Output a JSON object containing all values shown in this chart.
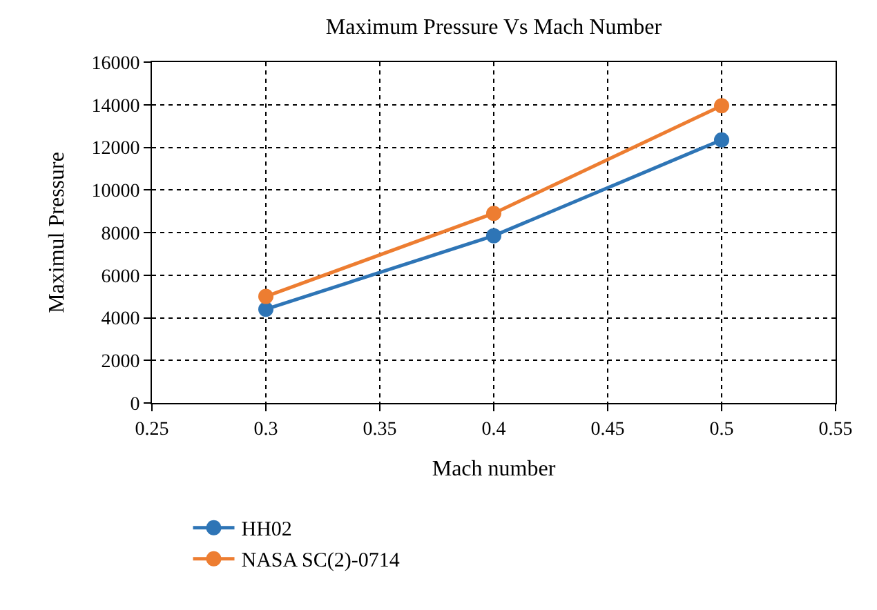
{
  "chart_data": {
    "type": "line",
    "title": "Maximum Pressure Vs Mach Number",
    "xlabel": "Mach number",
    "ylabel": "Maximul Pressure",
    "x": [
      0.3,
      0.4,
      0.5
    ],
    "series": [
      {
        "name": "HH02",
        "color": "#2e75b6",
        "values": [
          4400,
          7850,
          12350
        ]
      },
      {
        "name": "NASA SC(2)-0714",
        "color": "#ed7d31",
        "values": [
          5000,
          8900,
          13950
        ]
      }
    ],
    "xlim": [
      0.25,
      0.55
    ],
    "xticks": [
      0.25,
      0.3,
      0.35,
      0.4,
      0.45,
      0.5,
      0.55
    ],
    "ylim": [
      0,
      16000
    ],
    "yticks": [
      0,
      2000,
      4000,
      6000,
      8000,
      10000,
      12000,
      14000,
      16000
    ],
    "grid": true,
    "legend": "bottom",
    "marker": "circle",
    "line_style": "solid"
  }
}
